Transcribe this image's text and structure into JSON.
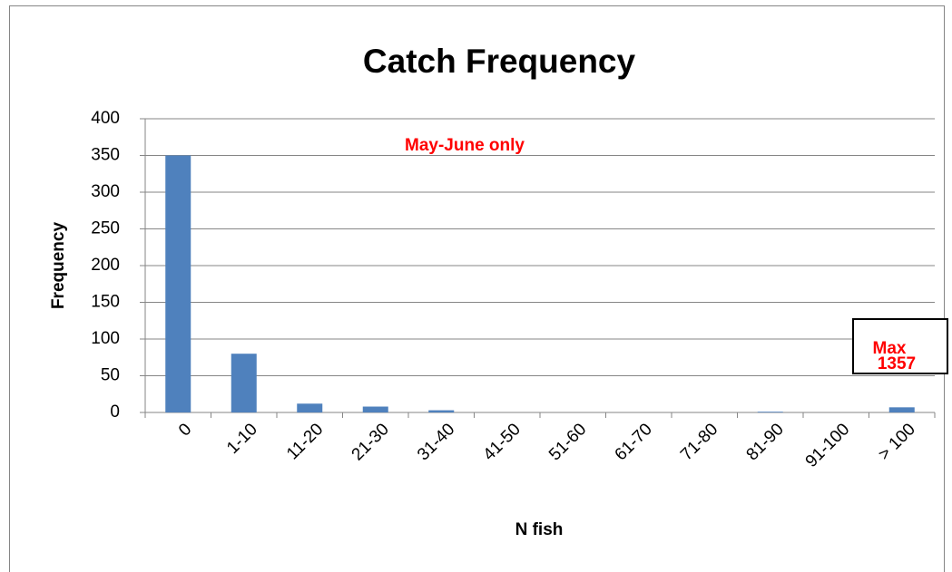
{
  "chart_data": {
    "type": "bar",
    "title": "Catch Frequency",
    "x_label": "N fish",
    "y_label": "Frequency",
    "categories": [
      "0",
      "1-10",
      "11-20",
      "21-30",
      "31-40",
      "41-50",
      "51-60",
      "61-70",
      "71-80",
      "81-90",
      "91-100",
      "> 100"
    ],
    "values": [
      350,
      80,
      12,
      8,
      3,
      0,
      0,
      0,
      0,
      1,
      0,
      7
    ],
    "color": "#4f81bd",
    "ylim": [
      0,
      400
    ],
    "yticks": [
      0,
      50,
      100,
      150,
      200,
      250,
      300,
      350,
      400
    ],
    "grid": true,
    "annotation": "May-June only",
    "note_box": [
      "Max",
      "1357"
    ]
  }
}
